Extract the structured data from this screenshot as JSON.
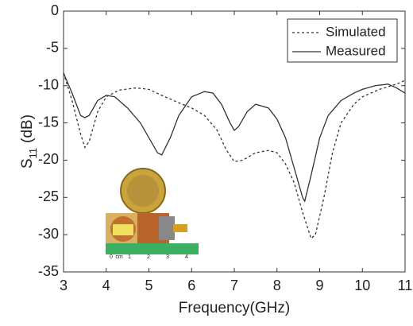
{
  "chart_data": {
    "type": "line",
    "xlabel": "Frequency(GHz)",
    "ylabel": [
      "S",
      "11",
      "(dB)"
    ],
    "xlim": [
      3,
      11
    ],
    "xticks": [
      3,
      4,
      5,
      6,
      7,
      8,
      9,
      10,
      11
    ],
    "ylim": [
      -35,
      0
    ],
    "yticks": [
      0,
      -5,
      -10,
      -15,
      -20,
      -25,
      -30,
      -35
    ],
    "legend": "upper-right",
    "series": [
      {
        "name": "Simulated",
        "color": "#333333",
        "dash": "3,3",
        "x": [
          3.0,
          3.2,
          3.4,
          3.5,
          3.6,
          3.8,
          4.0,
          4.3,
          4.7,
          5.0,
          5.3,
          5.7,
          6.0,
          6.3,
          6.6,
          6.8,
          7.0,
          7.2,
          7.5,
          7.8,
          8.0,
          8.2,
          8.4,
          8.6,
          8.8,
          8.9,
          9.1,
          9.3,
          9.5,
          9.8,
          10.0,
          10.4,
          10.8,
          11.0
        ],
        "values": [
          -8.3,
          -12,
          -16.5,
          -18.3,
          -17.5,
          -13.5,
          -11.5,
          -10.6,
          -10.3,
          -10.5,
          -11.3,
          -12.3,
          -13,
          -14,
          -16,
          -18.5,
          -20.2,
          -20,
          -19,
          -18.7,
          -19,
          -20.5,
          -23,
          -27,
          -30.5,
          -30,
          -25,
          -19,
          -15,
          -12.5,
          -11.5,
          -10.5,
          -9.8,
          -9.3
        ]
      },
      {
        "name": "Measured",
        "color": "#333333",
        "dash": "none",
        "x": [
          3.0,
          3.2,
          3.4,
          3.5,
          3.6,
          3.8,
          4.0,
          4.2,
          4.5,
          4.8,
          5.0,
          5.2,
          5.3,
          5.5,
          5.7,
          6.0,
          6.3,
          6.5,
          6.7,
          6.9,
          7.0,
          7.1,
          7.3,
          7.5,
          7.8,
          8.0,
          8.2,
          8.4,
          8.6,
          8.65,
          8.8,
          9.0,
          9.2,
          9.5,
          9.8,
          10.0,
          10.3,
          10.6,
          10.8,
          11.0
        ],
        "values": [
          -8.3,
          -11,
          -14,
          -14.3,
          -14,
          -12,
          -11.3,
          -11.5,
          -13,
          -15,
          -17,
          -19,
          -19.3,
          -17,
          -14,
          -11.5,
          -10.8,
          -11,
          -12.5,
          -15,
          -16,
          -15.5,
          -13.5,
          -12.5,
          -13,
          -14.5,
          -17,
          -21,
          -25,
          -25.5,
          -22,
          -17,
          -14,
          -12,
          -11,
          -10.5,
          -10,
          -9.8,
          -10.3,
          -11
        ]
      }
    ]
  },
  "inset": {
    "ruler_labels": [
      "0",
      "cm",
      "1",
      "2",
      "3",
      "4"
    ]
  }
}
